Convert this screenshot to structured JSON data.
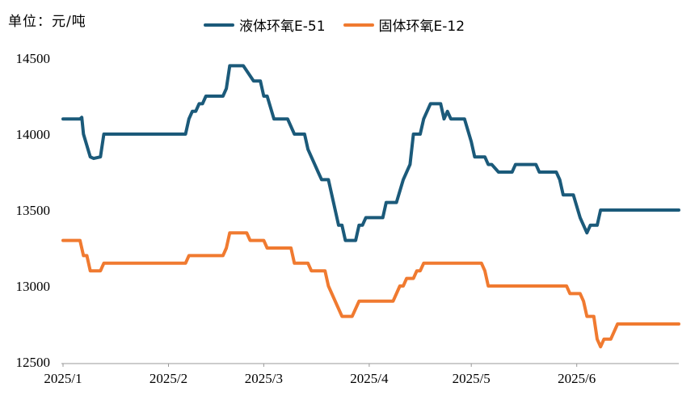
{
  "unit_label": "单位：元/吨",
  "colors": {
    "series1": "#1b5a7a",
    "series2": "#f07a30",
    "axis": "#999999"
  },
  "chart_data": {
    "type": "line",
    "title": "",
    "xlabel": "",
    "ylabel": "",
    "ylim": [
      12500,
      14500
    ],
    "yticks": [
      12500,
      13000,
      13500,
      14000,
      14500
    ],
    "x_tick_labels": [
      "2025/1",
      "2025/2",
      "2025/3",
      "2025/4",
      "2025/5",
      "2025/6"
    ],
    "x_tick_days": [
      1,
      32,
      60,
      91,
      121,
      152
    ],
    "xlim_days": [
      1,
      182
    ],
    "grid": false,
    "legend": "top-center",
    "series": [
      {
        "name": "液体环氧E-51",
        "color": "#1b5a7a",
        "points": [
          [
            1,
            14100
          ],
          [
            6,
            14100
          ],
          [
            6.5,
            14110
          ],
          [
            7,
            14000
          ],
          [
            9,
            13850
          ],
          [
            10,
            13840
          ],
          [
            12,
            13850
          ],
          [
            13,
            14000
          ],
          [
            14,
            14000
          ],
          [
            29,
            14000
          ],
          [
            37,
            14000
          ],
          [
            38,
            14100
          ],
          [
            39,
            14150
          ],
          [
            40,
            14150
          ],
          [
            41,
            14200
          ],
          [
            42,
            14200
          ],
          [
            43,
            14250
          ],
          [
            48,
            14250
          ],
          [
            49,
            14300
          ],
          [
            50,
            14450
          ],
          [
            54,
            14450
          ],
          [
            57,
            14350
          ],
          [
            59,
            14350
          ],
          [
            60,
            14250
          ],
          [
            61,
            14250
          ],
          [
            63,
            14100
          ],
          [
            67,
            14100
          ],
          [
            69,
            14000
          ],
          [
            72,
            14000
          ],
          [
            73,
            13900
          ],
          [
            75,
            13800
          ],
          [
            76,
            13750
          ],
          [
            77,
            13700
          ],
          [
            79,
            13700
          ],
          [
            80,
            13600
          ],
          [
            82,
            13400
          ],
          [
            83,
            13400
          ],
          [
            84,
            13300
          ],
          [
            87,
            13300
          ],
          [
            88,
            13400
          ],
          [
            89,
            13400
          ],
          [
            90,
            13450
          ],
          [
            95,
            13450
          ],
          [
            96,
            13550
          ],
          [
            99,
            13550
          ],
          [
            101,
            13700
          ],
          [
            102,
            13750
          ],
          [
            103,
            13800
          ],
          [
            104,
            14000
          ],
          [
            106,
            14000
          ],
          [
            107,
            14100
          ],
          [
            109,
            14200
          ],
          [
            112,
            14200
          ],
          [
            113,
            14100
          ],
          [
            114,
            14150
          ],
          [
            115,
            14100
          ],
          [
            119,
            14100
          ],
          [
            121,
            13950
          ],
          [
            122,
            13850
          ],
          [
            125,
            13850
          ],
          [
            126,
            13800
          ],
          [
            127,
            13800
          ],
          [
            129,
            13750
          ],
          [
            133,
            13750
          ],
          [
            134,
            13800
          ],
          [
            140,
            13800
          ],
          [
            141,
            13750
          ],
          [
            146,
            13750
          ],
          [
            147,
            13700
          ],
          [
            148,
            13600
          ],
          [
            151,
            13600
          ],
          [
            153,
            13450
          ],
          [
            155,
            13350
          ],
          [
            156,
            13400
          ],
          [
            158,
            13400
          ],
          [
            159,
            13500
          ],
          [
            182,
            13500
          ]
        ]
      },
      {
        "name": "固体环氧E-12",
        "color": "#f07a30",
        "points": [
          [
            1,
            13300
          ],
          [
            6,
            13300
          ],
          [
            7,
            13200
          ],
          [
            8,
            13200
          ],
          [
            9,
            13100
          ],
          [
            12,
            13100
          ],
          [
            13,
            13150
          ],
          [
            37,
            13150
          ],
          [
            38,
            13200
          ],
          [
            48,
            13200
          ],
          [
            49,
            13250
          ],
          [
            50,
            13350
          ],
          [
            55,
            13350
          ],
          [
            56,
            13300
          ],
          [
            60,
            13300
          ],
          [
            61,
            13250
          ],
          [
            68,
            13250
          ],
          [
            69,
            13150
          ],
          [
            73,
            13150
          ],
          [
            74,
            13100
          ],
          [
            78,
            13100
          ],
          [
            79,
            13000
          ],
          [
            83,
            12800
          ],
          [
            86,
            12800
          ],
          [
            88,
            12900
          ],
          [
            98,
            12900
          ],
          [
            100,
            13000
          ],
          [
            101,
            13000
          ],
          [
            102,
            13050
          ],
          [
            104,
            13050
          ],
          [
            105,
            13100
          ],
          [
            106,
            13100
          ],
          [
            107,
            13150
          ],
          [
            124,
            13150
          ],
          [
            125,
            13100
          ],
          [
            126,
            13000
          ],
          [
            149,
            13000
          ],
          [
            150,
            12950
          ],
          [
            153,
            12950
          ],
          [
            154,
            12900
          ],
          [
            155,
            12800
          ],
          [
            157,
            12800
          ],
          [
            158,
            12650
          ],
          [
            159,
            12600
          ],
          [
            160,
            12650
          ],
          [
            162,
            12650
          ],
          [
            163,
            12700
          ],
          [
            164,
            12750
          ],
          [
            182,
            12750
          ]
        ]
      }
    ]
  }
}
